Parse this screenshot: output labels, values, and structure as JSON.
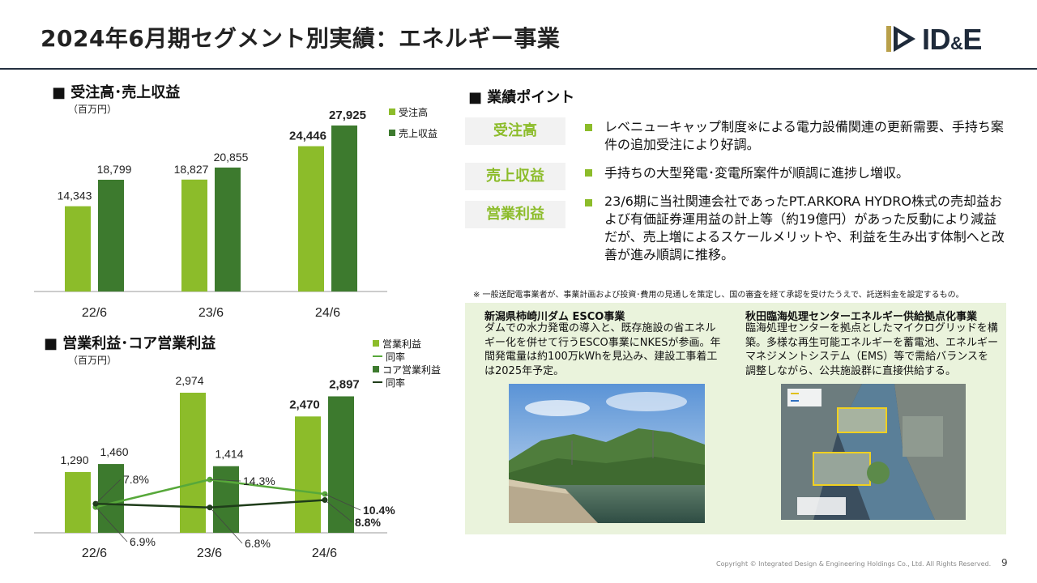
{
  "header": {
    "title": "2024年6月期セグメント別実績：エネルギー事業",
    "logo_text": "ID&E"
  },
  "colors": {
    "light_green": "#8cbc2a",
    "dark_green": "#3d7a2e",
    "line_light": "#57a83a",
    "line_dark": "#1f3d1a",
    "title_rule": "#24303f"
  },
  "sales_chart": {
    "section_title": "■ 受注高･売上収益",
    "unit": "（百万円）",
    "legend": [
      "受注高",
      "売上収益"
    ]
  },
  "profit_chart": {
    "section_title": "■ 営業利益･コア営業利益",
    "unit": "（百万円）",
    "legend": [
      "営業利益",
      "同率",
      "コア営業利益",
      "同率"
    ]
  },
  "chart_data": [
    {
      "type": "bar",
      "title": "受注高･売上収益",
      "ylabel": "（百万円）",
      "categories": [
        "22/6",
        "23/6",
        "24/6"
      ],
      "series": [
        {
          "name": "受注高",
          "values": [
            14343,
            18827,
            24446
          ],
          "color": "#8cbc2a"
        },
        {
          "name": "売上収益",
          "values": [
            18799,
            20855,
            27925
          ],
          "color": "#3d7a2e"
        }
      ],
      "data_labels": {
        "受注高": [
          "14,343",
          "18,827",
          "24,446"
        ],
        "売上収益": [
          "18,799",
          "20,855",
          "27,925"
        ]
      },
      "ylim": [
        0,
        30000
      ],
      "grid": false,
      "legend_position": "top-right"
    },
    {
      "type": "bar",
      "title": "営業利益･コア営業利益",
      "ylabel": "（百万円）",
      "categories": [
        "22/6",
        "23/6",
        "24/6"
      ],
      "series": [
        {
          "name": "営業利益",
          "values": [
            1290,
            2974,
            2470
          ],
          "color": "#8cbc2a"
        },
        {
          "name": "コア営業利益",
          "values": [
            1460,
            1414,
            2897
          ],
          "color": "#3d7a2e"
        }
      ],
      "lines": [
        {
          "name": "同率",
          "of": "営業利益",
          "values": [
            6.9,
            14.3,
            10.4
          ],
          "labels": [
            "6.9%",
            "14.3%",
            "10.4%"
          ],
          "color": "#57a83a"
        },
        {
          "name": "同率",
          "of": "コア営業利益",
          "values": [
            7.8,
            6.8,
            8.8
          ],
          "labels": [
            "7.8%",
            "6.8%",
            "8.8%"
          ],
          "color": "#1f3d1a"
        }
      ],
      "data_labels": {
        "営業利益": [
          "1,290",
          "2,974",
          "2,470"
        ],
        "コア営業利益": [
          "1,460",
          "1,414",
          "2,897"
        ]
      },
      "ylim": [
        0,
        3200
      ],
      "grid": false,
      "legend_position": "top-right"
    }
  ],
  "points": {
    "section_title": "■ 業績ポイント",
    "items": [
      {
        "label": "受注高",
        "text": "レベニューキャップ制度※による電力設備関連の更新需要、手持ち案件の追加受注により好調。"
      },
      {
        "label": "売上収益",
        "text": "手持ちの大型発電･変電所案件が順調に進捗し増収。"
      },
      {
        "label": "営業利益",
        "text": "23/6期に当社関連会社であったPT.ARKORA HYDRO株式の売却益および有価証券運用益の計上等（約19億円）があった反動により減益だが、売上増によるスケールメリットや、利益を生み出す体制へと改善が進み順調に推移。"
      }
    ],
    "note": "※ 一般送配電事業者が、事業計画および投資･費用の見通しを策定し、国の審査を経て承認を受けたうえで、託送料金を設定するもの。"
  },
  "cases": [
    {
      "title": "新潟県柿崎川ダム ESCO事業",
      "text": "ダムでの水力発電の導入と、既存施設の省エネルギー化を併せて行うESCO事業にNKESが参画。年間発電量は約100万kWhを見込み、建設工事着工は2025年予定。"
    },
    {
      "title": "秋田臨海処理センターエネルギー供給拠点化事業",
      "text": "臨海処理センターを拠点としたマイクログリッドを構築。多様な再生可能エネルギーを蓄電池、エネルギーマネジメントシステム（EMS）等で需給バランスを調整しながら、公共施設群に直接供給する。"
    }
  ],
  "footer": {
    "copyright": "Copyright © Integrated Design & Engineering Holdings Co., Ltd.  All Rights Reserved.",
    "page_number": "9"
  }
}
